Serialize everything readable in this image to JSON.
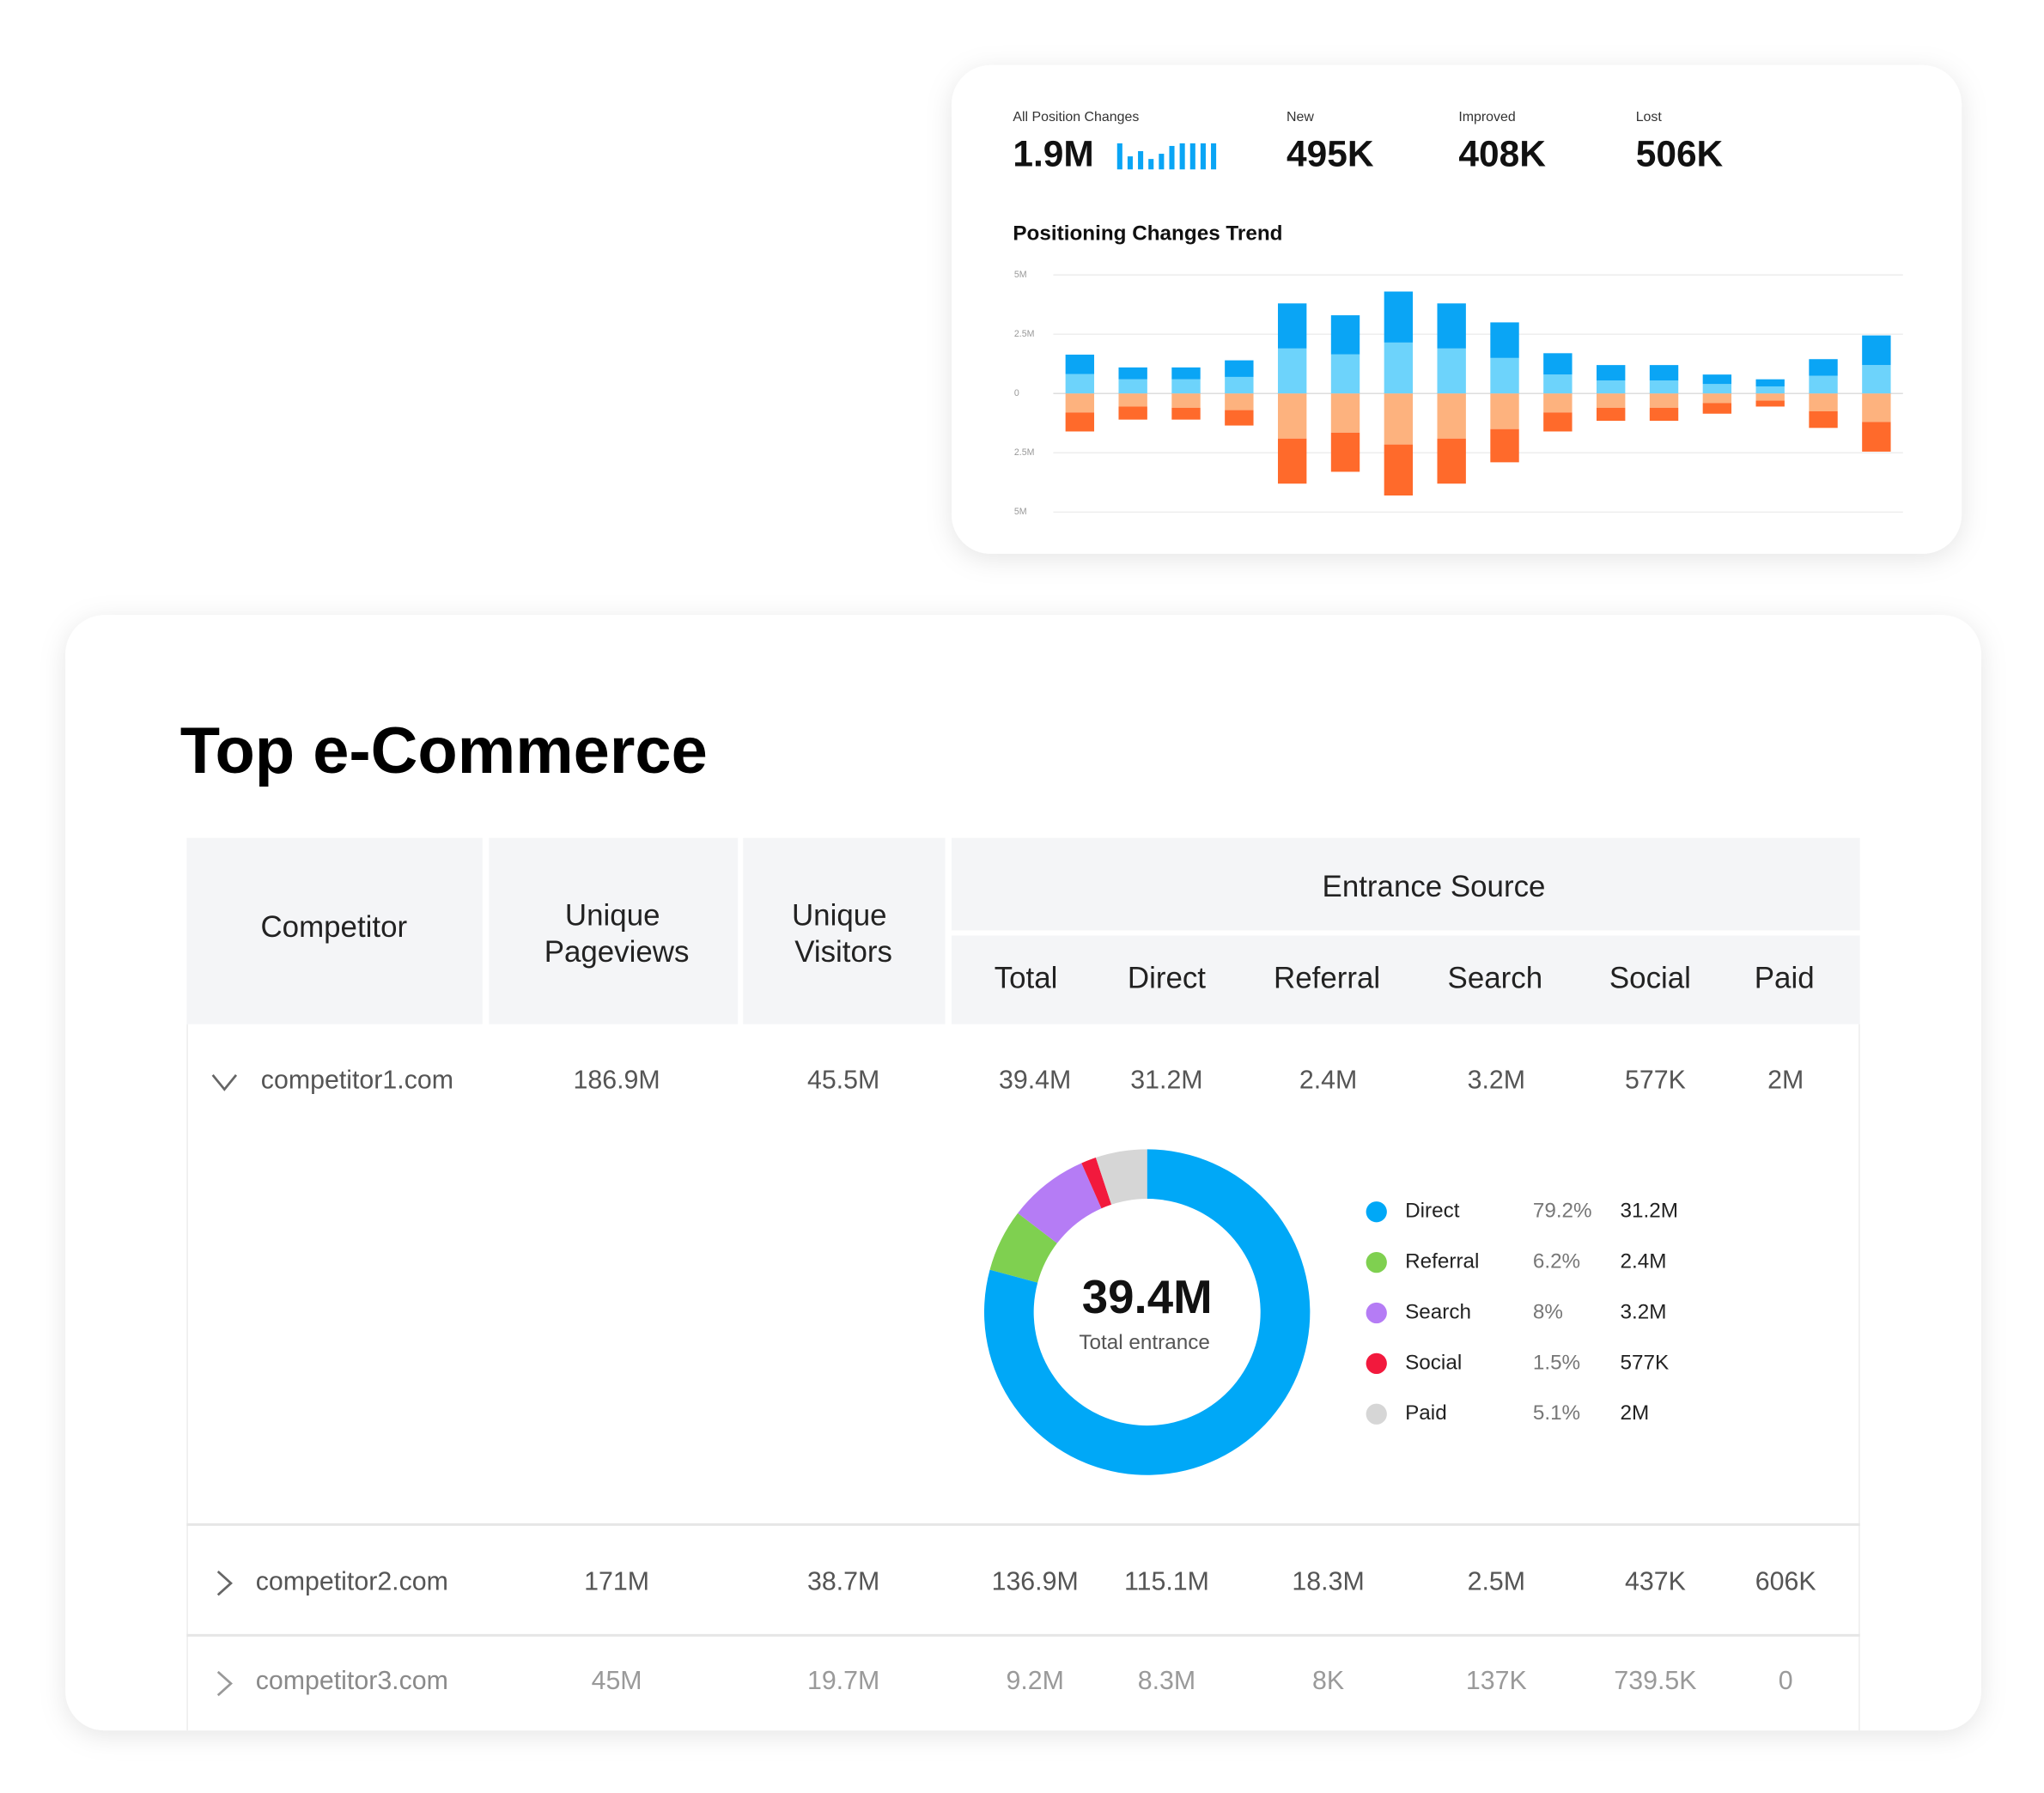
{
  "kpis": [
    {
      "label": "All Position Changes",
      "value": "1.9M"
    },
    {
      "label": "New",
      "value": "495K"
    },
    {
      "label": "Improved",
      "value": "408K"
    },
    {
      "label": "Lost",
      "value": "506K"
    }
  ],
  "chart_data": [
    {
      "type": "bar",
      "stacked": true,
      "title": "Positioning Changes Trend",
      "categories": [
        null,
        null,
        null,
        null,
        null,
        null,
        null,
        null,
        null,
        null,
        null,
        null,
        null,
        null,
        null,
        null
      ],
      "ylim": [
        -5,
        5
      ],
      "yticks": [
        {
          "value": 5,
          "label": "5M"
        },
        {
          "value": 2.5,
          "label": "2.5M"
        },
        0,
        {
          "value": -2.5,
          "label": "2.5M"
        },
        {
          "value": -5,
          "label": "5M"
        }
      ],
      "grid": true,
      "series": [
        {
          "color": "#6dd3fb",
          "values": [
            0.82,
            0.6,
            0.6,
            0.7,
            1.9,
            1.65,
            2.15,
            1.9,
            1.5,
            0.8,
            0.55,
            0.55,
            0.4,
            0.3,
            0.75,
            1.2
          ]
        },
        {
          "color": "#0aa5f5",
          "values": [
            0.82,
            0.5,
            0.5,
            0.7,
            1.9,
            1.65,
            2.15,
            1.9,
            1.5,
            0.9,
            0.65,
            0.65,
            0.4,
            0.3,
            0.7,
            1.25
          ]
        },
        {
          "color": "#fdb27e",
          "values": [
            -0.8,
            -0.55,
            -0.6,
            -0.7,
            -1.9,
            -1.65,
            -2.15,
            -1.9,
            -1.5,
            -0.8,
            -0.6,
            -0.6,
            -0.4,
            -0.3,
            -0.75,
            -1.2
          ]
        },
        {
          "color": "#ff6a2b",
          "values": [
            -0.8,
            -0.55,
            -0.5,
            -0.65,
            -1.9,
            -1.65,
            -2.15,
            -1.9,
            -1.4,
            -0.8,
            -0.55,
            -0.55,
            -0.45,
            -0.25,
            -0.7,
            -1.25
          ]
        }
      ]
    },
    {
      "type": "pie",
      "center_value": "39.4M",
      "center_label": "Total entrance",
      "categories": [
        "Direct",
        "Referral",
        "Search",
        "Social",
        "Paid"
      ],
      "colors": [
        "#00a8f7",
        "#7fd050",
        "#b57cf5",
        "#f2193d",
        "#d6d6d6"
      ],
      "values": [
        79.2,
        6.2,
        8,
        1.5,
        5.1
      ],
      "value_labels": [
        "79.2%",
        "6.2%",
        "8%",
        "1.5%",
        "5.1%"
      ],
      "amounts": [
        "31.2M",
        "2.4M",
        "3.2M",
        "577K",
        "2M"
      ]
    }
  ],
  "table": {
    "title": "Top e-Commerce",
    "columns": [
      "Competitor",
      "Unique Pageviews",
      "Unique Visitors"
    ],
    "group": "Entrance Source",
    "subcolumns": [
      "Total",
      "Direct",
      "Referral",
      "Search",
      "Social",
      "Paid"
    ],
    "rows": [
      [
        "competitor1.com",
        "186.9M",
        "45.5M",
        "39.4M",
        "31.2M",
        "2.4M",
        "3.2M",
        "577K",
        "2M"
      ],
      [
        "competitor2.com",
        "171M",
        "38.7M",
        "136.9M",
        "115.1M",
        "18.3M",
        "2.5M",
        "437K",
        "606K"
      ],
      [
        "competitor3.com",
        "45M",
        "19.7M",
        "9.2M",
        "8.3M",
        "8K",
        "137K",
        "739.5K",
        "0"
      ]
    ]
  }
}
